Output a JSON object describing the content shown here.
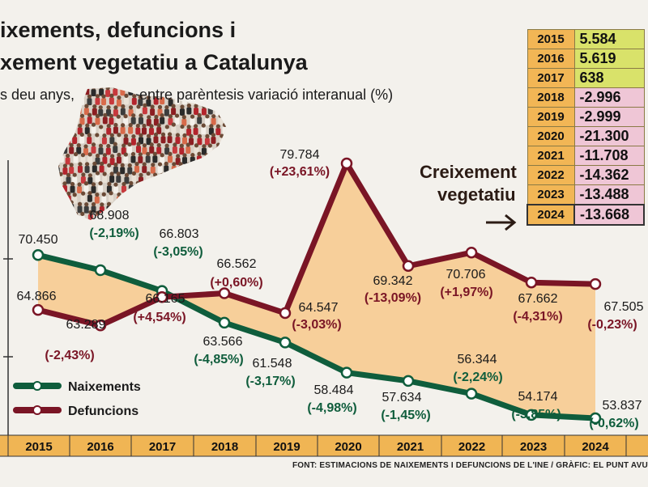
{
  "title": {
    "line1": "ixements, defuncions i",
    "line2": "xement vegetatiu a Catalunya"
  },
  "subtitle": {
    "left": "s deu anys,",
    "right": "entre parèntesis variació interanual (%)"
  },
  "colors": {
    "naixements": "#0f5d3c",
    "defuncions": "#7a1525",
    "fill": "#f7cf9a",
    "axis_band": "#f0b554",
    "table_year": "#f2b655",
    "table_positive": "#d9e26a",
    "table_negative": "#efc6d6",
    "background": "#f3f1ec"
  },
  "chart_data": {
    "type": "line",
    "x": [
      "2015",
      "2016",
      "2017",
      "2018",
      "2019",
      "2020",
      "2021",
      "2022",
      "2023",
      "2024"
    ],
    "series": [
      {
        "name": "Naixements",
        "values": [
          70450,
          68908,
          66803,
          63566,
          61548,
          58484,
          57634,
          56344,
          54174,
          53837
        ],
        "labels": [
          "70.450",
          "68.908",
          "66.803",
          "63.566",
          "61.548",
          "58.484",
          "57.634",
          "56.344",
          "54.174",
          "53.837"
        ],
        "variations": [
          "",
          "(-2,19%)",
          "(-3,05%)",
          "(-4,85%)",
          "(-3,17%)",
          "(-4,98%)",
          "(-1,45%)",
          "(-2,24%)",
          "(-3,85%)",
          "(-0,62%)"
        ]
      },
      {
        "name": "Defuncions",
        "values": [
          64866,
          63289,
          66165,
          66562,
          64547,
          79784,
          69342,
          70706,
          67662,
          67505
        ],
        "labels": [
          "64.866",
          "63.289",
          "66.165",
          "66.562",
          "64.547",
          "79.784",
          "69.342",
          "70.706",
          "67.662",
          "67.505"
        ],
        "variations": [
          "",
          "(-2,43%)",
          "(+4,54%)",
          "(+0,60%)",
          "(-3,03%)",
          "(+23,61%)",
          "(-13,09%)",
          "(+1,97%)",
          "(-4,31%)",
          "(-0,23%)"
        ]
      }
    ],
    "ylim": [
      50000,
      80000
    ],
    "grid": false,
    "legend": "bottom-left"
  },
  "table": {
    "title": "Creixement vegetatiu",
    "title_line1": "Creixement",
    "title_line2": "vegetatiu",
    "rows": [
      {
        "year": "2015",
        "value": "5.584",
        "sign": "pos"
      },
      {
        "year": "2016",
        "value": "5.619",
        "sign": "pos"
      },
      {
        "year": "2017",
        "value": "638",
        "sign": "pos"
      },
      {
        "year": "2018",
        "value": "-2.996",
        "sign": "neg"
      },
      {
        "year": "2019",
        "value": "-2.999",
        "sign": "neg"
      },
      {
        "year": "2020",
        "value": "-21.300",
        "sign": "neg"
      },
      {
        "year": "2021",
        "value": "-11.708",
        "sign": "neg"
      },
      {
        "year": "2022",
        "value": "-14.362",
        "sign": "neg"
      },
      {
        "year": "2023",
        "value": "-13.488",
        "sign": "neg"
      },
      {
        "year": "2024",
        "value": "-13.668",
        "sign": "neg"
      }
    ]
  },
  "arrow_icon": "right-arrow-icon",
  "illustration_icon": "catalonia-map-icon",
  "footer": "FONT: ESTIMACIONS DE NAIXEMENTS I DEFUNCIONS DE L'INE / GRÀFIC: EL PUNT AVUI"
}
